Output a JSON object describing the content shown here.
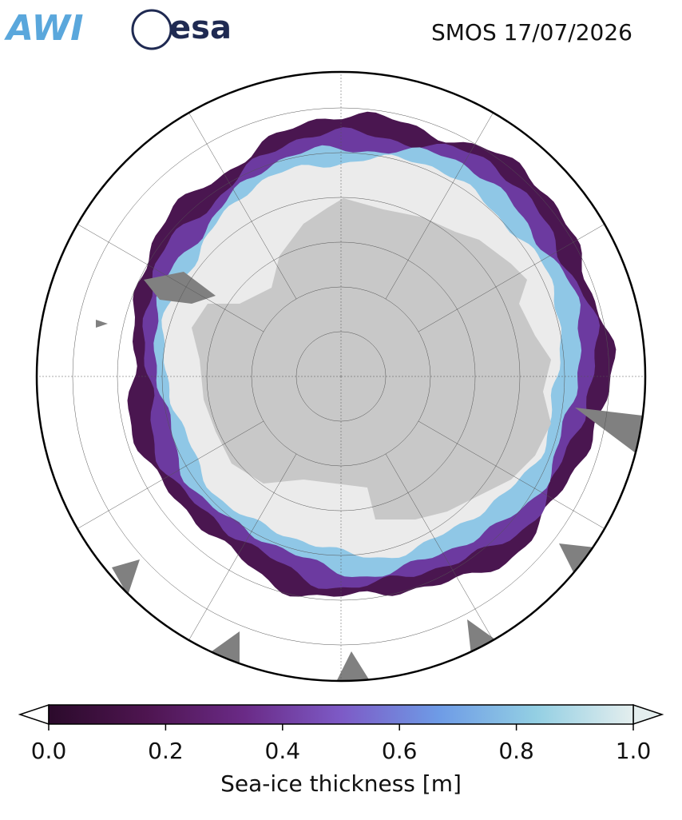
{
  "header": {
    "logos": [
      "AWI",
      "esa"
    ],
    "title": "SMOS 17/07/2026"
  },
  "colorbar": {
    "label": "Sea-ice thickness [m]",
    "lim": [
      0,
      1
    ],
    "ticks": [
      {
        "value": 0,
        "label": "0.0"
      },
      0.2,
      0.4,
      0.6,
      0.8,
      {
        "value": 1,
        "label": "1.0"
      }
    ],
    "colormap": [
      "#2b0a2b",
      "#4e1550",
      "#6a2a86",
      "#7d5ac6",
      "#6e9be6",
      "#93cfe3",
      "#e4eeee"
    ]
  }
}
